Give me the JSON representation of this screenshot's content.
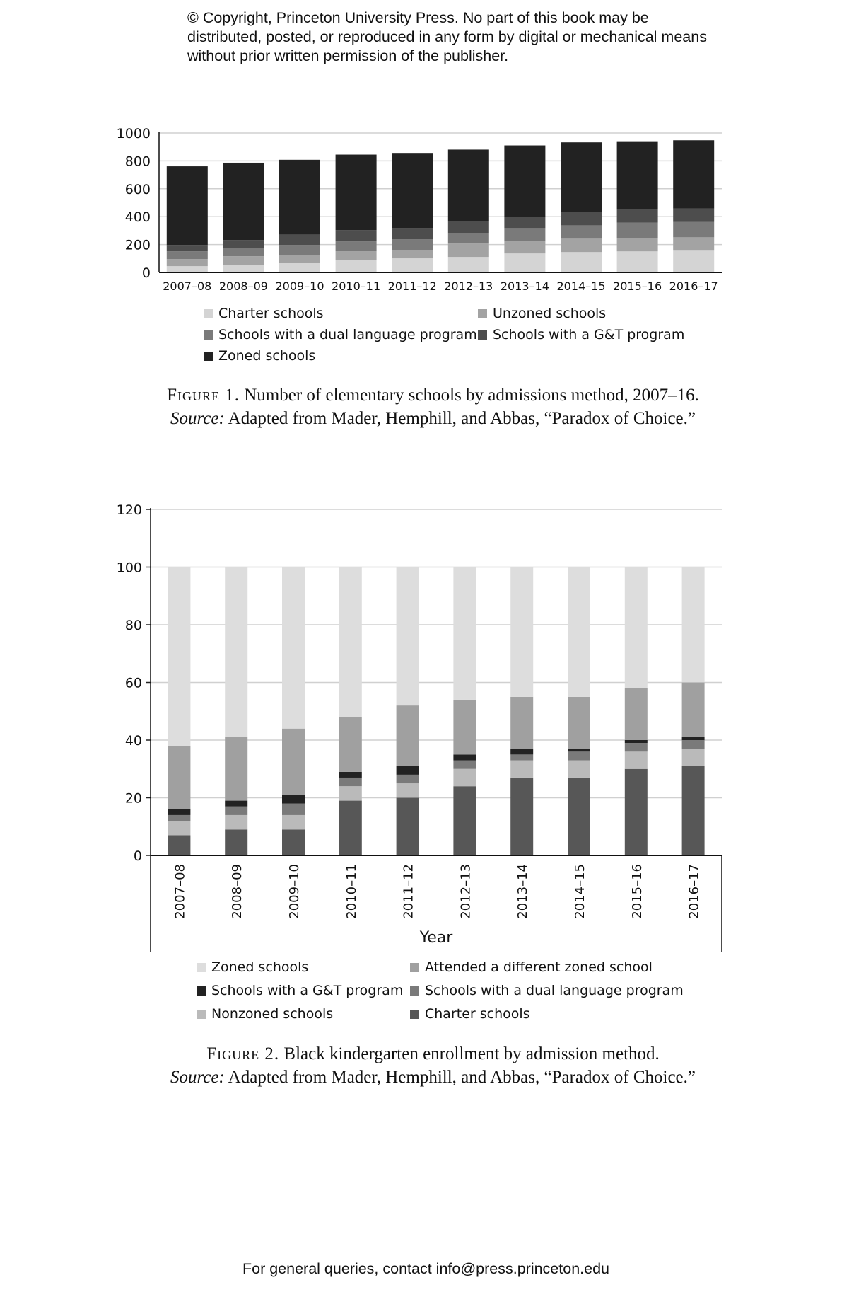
{
  "header": {
    "copyright": "© Copyright, Princeton University Press. No part of this book may be distributed, posted, or reproduced in any form by digital or mechanical means without prior written permission of the publisher."
  },
  "footer": {
    "text": "For general queries, contact info@press.princeton.edu"
  },
  "captions": [
    {
      "label": "Figure 1.",
      "text": " Number of elementary schools by admissions method, 2007–16.",
      "source_label": "Source:",
      "source": " Adapted from Mader, Hemphill, and Abbas, “Paradox of Choice.”"
    },
    {
      "label": "Figure 2.",
      "text": " Black kindergarten enrollment by admission method.",
      "source_label": "Source:",
      "source": " Adapted from Mader, Hemphill, and Abbas, “Paradox of Choice.”"
    }
  ],
  "chart_data": [
    {
      "type": "bar",
      "stacked": true,
      "categories": [
        "2007–08",
        "2008–09",
        "2009–10",
        "2010–11",
        "2011–12",
        "2012–13",
        "2013–14",
        "2014–15",
        "2015–16",
        "2016–17"
      ],
      "ylim": [
        0,
        1000
      ],
      "yticks": [
        0,
        200,
        400,
        600,
        800,
        1000
      ],
      "grid": true,
      "legend_position": "bottom",
      "xlabel": "",
      "ylabel": "",
      "series": [
        {
          "name": "Charter schools",
          "color": "#d4d4d4",
          "values": [
            45,
            55,
            71,
            91,
            101,
            111,
            136,
            146,
            151,
            156
          ]
        },
        {
          "name": "Unzoned schools",
          "color": "#a3a3a3",
          "values": [
            51,
            61,
            55,
            60,
            59,
            96,
            86,
            96,
            96,
            96
          ]
        },
        {
          "name": "Schools with a dual language program",
          "color": "#7a7a7a",
          "values": [
            55,
            60,
            71,
            71,
            77,
            75,
            96,
            96,
            111,
            111
          ]
        },
        {
          "name": "Schools with a G&T program",
          "color": "#4d4d4d",
          "values": [
            46,
            56,
            75,
            81,
            81,
            86,
            80,
            96,
            96,
            96
          ]
        },
        {
          "name": "Zoned schools",
          "color": "#222222",
          "values": [
            564,
            555,
            536,
            542,
            539,
            513,
            513,
            499,
            487,
            489
          ]
        }
      ],
      "legend_order": [
        0,
        1,
        2,
        3,
        4
      ]
    },
    {
      "type": "bar",
      "stacked": true,
      "categories": [
        "2007–08",
        "2008–09",
        "2009–10",
        "2010–11",
        "2011–12",
        "2012–13",
        "2013–14",
        "2014–15",
        "2015–16",
        "2016–17"
      ],
      "ylim": [
        0,
        120
      ],
      "yticks": [
        0,
        20,
        40,
        60,
        80,
        100,
        120
      ],
      "grid": true,
      "legend_position": "bottom",
      "xlabel": "Year",
      "ylabel": "",
      "series": [
        {
          "name": "Charter schools",
          "color": "#575757",
          "values": [
            7,
            9,
            9,
            19,
            20,
            24,
            27,
            27,
            30,
            31
          ]
        },
        {
          "name": "Nonzoned schools",
          "color": "#bababa",
          "values": [
            5,
            5,
            5,
            5,
            5,
            6,
            6,
            6,
            6,
            6
          ]
        },
        {
          "name": "Schools with a dual language program",
          "color": "#7a7a7a",
          "values": [
            2,
            3,
            4,
            3,
            3,
            3,
            2,
            3,
            3,
            3
          ]
        },
        {
          "name": "Schools with a G&T program",
          "color": "#222222",
          "values": [
            2,
            2,
            3,
            2,
            3,
            2,
            2,
            1,
            1,
            1
          ]
        },
        {
          "name": "Attended a different zoned school",
          "color": "#a0a0a0",
          "values": [
            22,
            22,
            23,
            19,
            21,
            19,
            18,
            18,
            18,
            19
          ]
        },
        {
          "name": "Zoned schools",
          "color": "#dddddd",
          "values": [
            62,
            59,
            56,
            52,
            48,
            46,
            45,
            45,
            42,
            40
          ]
        }
      ],
      "legend_order": [
        5,
        4,
        3,
        2,
        1,
        0
      ]
    }
  ]
}
